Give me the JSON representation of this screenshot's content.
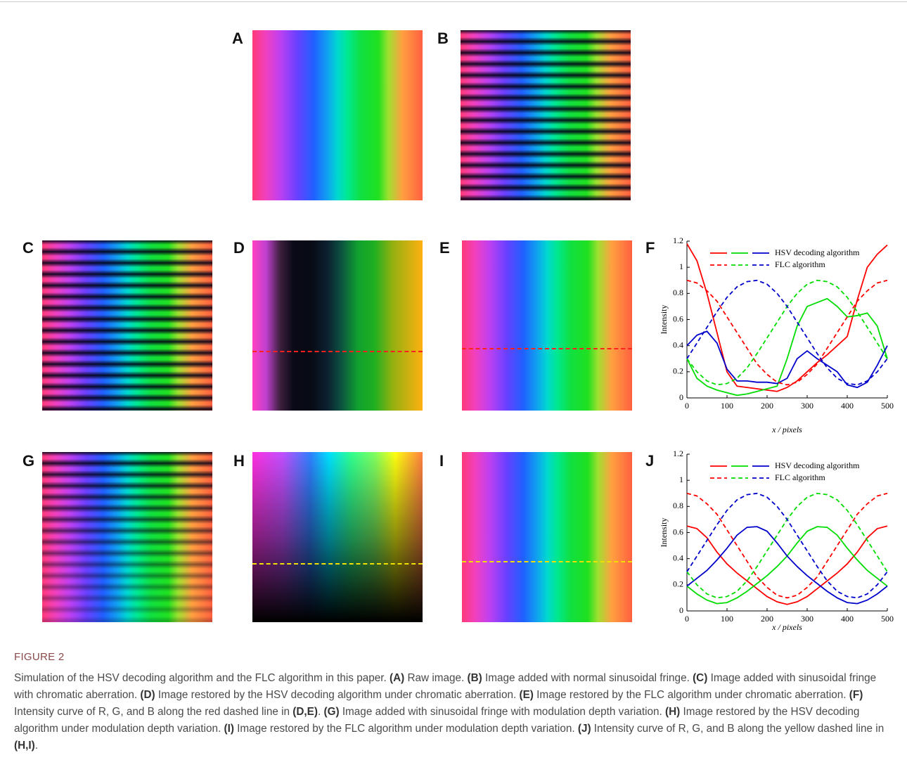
{
  "panel_labels": [
    "A",
    "B",
    "C",
    "D",
    "E",
    "F",
    "G",
    "H",
    "I",
    "J"
  ],
  "chart_data": [
    {
      "type": "line",
      "xlabel": "x / pixels",
      "ylabel": "Intensity",
      "x": [
        0,
        25,
        50,
        75,
        100,
        125,
        150,
        175,
        200,
        225,
        250,
        275,
        300,
        325,
        350,
        375,
        400,
        425,
        450,
        475,
        500
      ],
      "xlim": [
        0,
        500
      ],
      "xticks": [
        0,
        100,
        200,
        300,
        400,
        500
      ],
      "ylim": [
        0,
        1.2
      ],
      "yticks": [
        0,
        0.2,
        0.4,
        0.6,
        0.8,
        1,
        1.2
      ],
      "series": [
        {
          "name": "HSV decoding algorithm",
          "color": "#ff0000",
          "dashed": false,
          "values": [
            1.18,
            1.05,
            0.8,
            0.5,
            0.2,
            0.09,
            0.08,
            0.07,
            0.06,
            0.05,
            0.08,
            0.13,
            0.2,
            0.27,
            0.33,
            0.4,
            0.47,
            0.75,
            1.0,
            1.1,
            1.17
          ]
        },
        {
          "name": "HSV decoding algorithm",
          "color": "#00dd00",
          "dashed": false,
          "values": [
            0.3,
            0.15,
            0.09,
            0.06,
            0.04,
            0.02,
            0.03,
            0.05,
            0.07,
            0.09,
            0.3,
            0.55,
            0.7,
            0.73,
            0.76,
            0.7,
            0.62,
            0.63,
            0.65,
            0.55,
            0.3
          ]
        },
        {
          "name": "HSV decoding algorithm",
          "color": "#0000cc",
          "dashed": false,
          "values": [
            0.4,
            0.48,
            0.51,
            0.42,
            0.22,
            0.13,
            0.13,
            0.12,
            0.12,
            0.11,
            0.15,
            0.3,
            0.36,
            0.3,
            0.25,
            0.2,
            0.1,
            0.08,
            0.12,
            0.25,
            0.4
          ]
        },
        {
          "name": "FLC algorithm",
          "color": "#ff0000",
          "dashed": true,
          "values": [
            0.9,
            0.88,
            0.82,
            0.74,
            0.62,
            0.5,
            0.38,
            0.26,
            0.18,
            0.12,
            0.1,
            0.12,
            0.18,
            0.26,
            0.38,
            0.5,
            0.62,
            0.74,
            0.82,
            0.88,
            0.9
          ]
        },
        {
          "name": "FLC algorithm",
          "color": "#00dd00",
          "dashed": true,
          "values": [
            0.3,
            0.2,
            0.13,
            0.1,
            0.11,
            0.15,
            0.23,
            0.34,
            0.46,
            0.58,
            0.7,
            0.8,
            0.87,
            0.9,
            0.89,
            0.85,
            0.77,
            0.66,
            0.54,
            0.42,
            0.3
          ]
        },
        {
          "name": "FLC algorithm",
          "color": "#0000cc",
          "dashed": true,
          "values": [
            0.3,
            0.42,
            0.54,
            0.66,
            0.77,
            0.85,
            0.89,
            0.9,
            0.87,
            0.8,
            0.7,
            0.58,
            0.46,
            0.34,
            0.23,
            0.15,
            0.11,
            0.1,
            0.13,
            0.2,
            0.3
          ]
        }
      ]
    },
    {
      "type": "line",
      "xlabel": "x / pixels",
      "ylabel": "Intensity",
      "x": [
        0,
        25,
        50,
        75,
        100,
        125,
        150,
        175,
        200,
        225,
        250,
        275,
        300,
        325,
        350,
        375,
        400,
        425,
        450,
        475,
        500
      ],
      "xlim": [
        0,
        500
      ],
      "xticks": [
        0,
        100,
        200,
        300,
        400,
        500
      ],
      "ylim": [
        0,
        1.2
      ],
      "yticks": [
        0,
        0.2,
        0.4,
        0.6,
        0.8,
        1,
        1.2
      ],
      "series": [
        {
          "name": "HSV decoding algorithm",
          "color": "#ff0000",
          "dashed": false,
          "values": [
            0.65,
            0.63,
            0.56,
            0.45,
            0.36,
            0.29,
            0.23,
            0.17,
            0.11,
            0.07,
            0.05,
            0.07,
            0.11,
            0.17,
            0.23,
            0.29,
            0.36,
            0.45,
            0.56,
            0.63,
            0.65
          ]
        },
        {
          "name": "HSV decoding algorithm",
          "color": "#00dd00",
          "dashed": false,
          "values": [
            0.19,
            0.13,
            0.083,
            0.056,
            0.064,
            0.1,
            0.15,
            0.21,
            0.27,
            0.34,
            0.42,
            0.52,
            0.61,
            0.645,
            0.64,
            0.58,
            0.48,
            0.39,
            0.31,
            0.25,
            0.19
          ]
        },
        {
          "name": "HSV decoding algorithm",
          "color": "#0000cc",
          "dashed": false,
          "values": [
            0.19,
            0.25,
            0.31,
            0.39,
            0.48,
            0.58,
            0.64,
            0.645,
            0.61,
            0.52,
            0.42,
            0.34,
            0.27,
            0.21,
            0.15,
            0.1,
            0.064,
            0.056,
            0.083,
            0.13,
            0.19
          ]
        },
        {
          "name": "FLC algorithm",
          "color": "#ff0000",
          "dashed": true,
          "values": [
            0.9,
            0.88,
            0.82,
            0.74,
            0.62,
            0.5,
            0.38,
            0.26,
            0.18,
            0.12,
            0.1,
            0.12,
            0.18,
            0.26,
            0.38,
            0.5,
            0.62,
            0.74,
            0.82,
            0.88,
            0.9
          ]
        },
        {
          "name": "FLC algorithm",
          "color": "#00dd00",
          "dashed": true,
          "values": [
            0.3,
            0.2,
            0.13,
            0.1,
            0.11,
            0.15,
            0.23,
            0.34,
            0.46,
            0.58,
            0.7,
            0.8,
            0.87,
            0.9,
            0.89,
            0.85,
            0.77,
            0.66,
            0.54,
            0.42,
            0.3
          ]
        },
        {
          "name": "FLC algorithm",
          "color": "#0000cc",
          "dashed": true,
          "values": [
            0.3,
            0.42,
            0.54,
            0.66,
            0.77,
            0.85,
            0.89,
            0.9,
            0.87,
            0.8,
            0.7,
            0.58,
            0.46,
            0.34,
            0.23,
            0.15,
            0.11,
            0.1,
            0.13,
            0.2,
            0.3
          ]
        }
      ]
    }
  ],
  "figure_label": "FIGURE 2",
  "caption": {
    "intro": "Simulation of the HSV decoding algorithm and the FLC algorithm in this paper.",
    "items": [
      {
        "label": "(A)",
        "text": "Raw image."
      },
      {
        "label": "(B)",
        "text": "Image added with normal sinusoidal fringe."
      },
      {
        "label": "(C)",
        "text": "Image added with sinusoidal fringe with chromatic aberration."
      },
      {
        "label": "(D)",
        "text": "Image restored by the HSV decoding algorithm under chromatic aberration."
      },
      {
        "label": "(E)",
        "text": "Image restored by the FLC algorithm under chromatic aberration."
      },
      {
        "label": "(F)",
        "text": "Intensity curve of R, G, and B along the red dashed line in",
        "ref": "(D,E)",
        "end": "."
      },
      {
        "label": "(G)",
        "text": "Image added with sinusoidal fringe with modulation depth variation."
      },
      {
        "label": "(H)",
        "text": "Image restored by the HSV decoding algorithm under modulation depth variation."
      },
      {
        "label": "(I)",
        "text": "Image restored by the FLC algorithm under modulation depth variation."
      },
      {
        "label": "(J)",
        "text": "Intensity curve of R, G, and B along the yellow dashed line in",
        "ref": "(H,I)",
        "end": "."
      }
    ]
  }
}
